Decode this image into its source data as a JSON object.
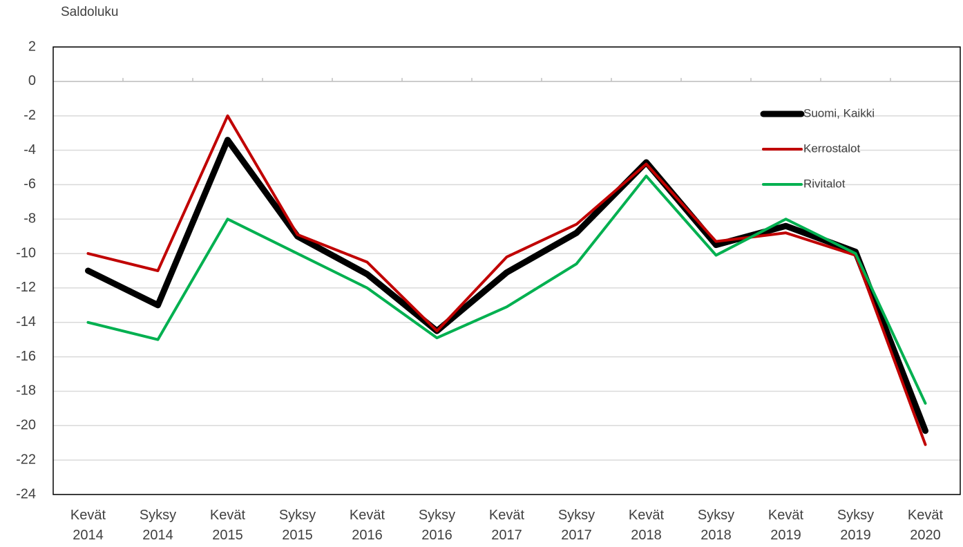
{
  "chart_data": {
    "type": "line",
    "y_label": "Saldoluku",
    "categories": [
      "Kevät 2014",
      "Syksy 2014",
      "Kevät 2015",
      "Syksy 2015",
      "Kevät 2016",
      "Syksy 2016",
      "Kevät 2017",
      "Syksy 2017",
      "Kevät 2018",
      "Syksy 2018",
      "Kevät 2019",
      "Syksy 2019",
      "Kevät 2020"
    ],
    "series": [
      {
        "name": "Suomi, Kaikki",
        "color": "#000000",
        "values": [
          -11,
          -13,
          -3.4,
          -9,
          -11.2,
          -14.5,
          -11.1,
          -8.8,
          -4.7,
          -9.5,
          -8.4,
          -9.9,
          -20.3
        ]
      },
      {
        "name": "Kerrostalot",
        "color": "#c00000",
        "values": [
          -10,
          -11,
          -2,
          -8.9,
          -10.5,
          -14.5,
          -10.2,
          -8.3,
          -4.8,
          -9.3,
          -8.8,
          -10.1,
          -21.1
        ]
      },
      {
        "name": "Rivitalot",
        "color": "#00b050",
        "values": [
          -14,
          -15,
          -8,
          -10,
          -12,
          -14.9,
          -13.1,
          -10.6,
          -5.5,
          -10.1,
          -8,
          -10,
          -18.7
        ]
      }
    ],
    "ylim": [
      -24,
      2
    ],
    "yticks": [
      2,
      0,
      -2,
      -4,
      -6,
      -8,
      -10,
      -12,
      -14,
      -16,
      -18,
      -20,
      -22,
      -24
    ],
    "grid": true,
    "legend": "upper right"
  }
}
